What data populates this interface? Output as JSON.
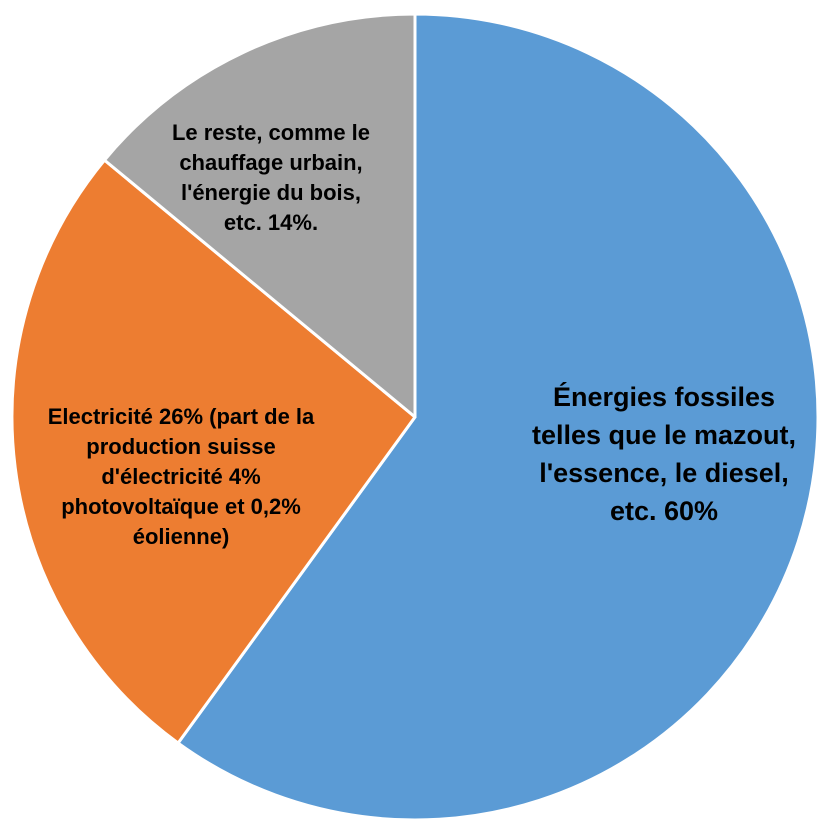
{
  "chart_data": {
    "type": "pie",
    "slices": [
      {
        "label_lines": [
          "Énergies fossiles",
          "telles que le mazout,",
          "l'essence, le diesel,",
          "etc. 60%"
        ],
        "value": 60,
        "color": "#5b9bd5"
      },
      {
        "label_lines": [
          "Electricité 26% (part de la",
          "production suisse",
          "d'électricité 4%",
          "photovoltaïque et 0,2%",
          "éolienne)"
        ],
        "value": 26,
        "color": "#ed7d31"
      },
      {
        "label_lines": [
          "Le reste, comme le",
          "chauffage urbain,",
          "l'énergie du bois,",
          "etc. 14%."
        ],
        "value": 14,
        "color": "#a5a5a5"
      }
    ],
    "start_angle": "top, clockwise",
    "legend": "none",
    "title": ""
  }
}
